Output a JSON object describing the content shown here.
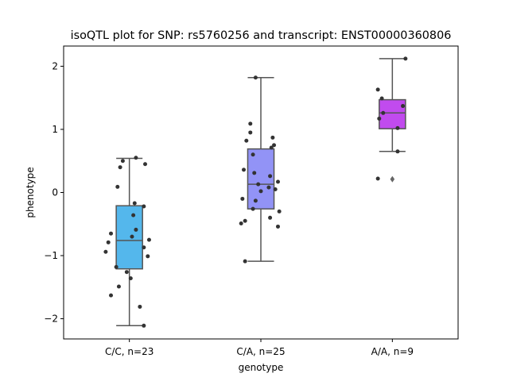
{
  "chart_data": {
    "type": "box",
    "title": "isoQTL plot for SNP: rs5760256 and transcript: ENST00000360806",
    "xlabel": "genotype",
    "ylabel": "phenotype",
    "ylim": [
      -2.32,
      2.32
    ],
    "yticks": [
      -2,
      -1,
      0,
      1,
      2
    ],
    "grid": false,
    "categories": [
      "C/C, n=23",
      "C/A, n=25",
      "A/A, n=9"
    ],
    "colors": [
      "#54b7ec",
      "#9293f6",
      "#c14bee"
    ],
    "point_color": "#333333",
    "box_edge_color": "#555555",
    "boxes": [
      {
        "category": "C/C, n=23",
        "whisker_low": -2.11,
        "q1": -1.21,
        "median": -0.76,
        "q3": -0.21,
        "whisker_high": 0.54,
        "outliers": []
      },
      {
        "category": "C/A, n=25",
        "whisker_low": -1.09,
        "q1": -0.26,
        "median": 0.13,
        "q3": 0.69,
        "whisker_high": 1.82,
        "outliers": []
      },
      {
        "category": "A/A, n=9",
        "whisker_low": 0.65,
        "q1": 1.01,
        "median": 1.26,
        "q3": 1.47,
        "whisker_high": 2.12,
        "outliers": [
          0.21
        ]
      }
    ],
    "points": [
      {
        "category": "C/C, n=23",
        "values": [
          0.55,
          0.5,
          0.45,
          0.4,
          0.09,
          -0.17,
          -0.22,
          -0.36,
          -0.59,
          -0.65,
          -0.7,
          -0.75,
          -0.87,
          -0.94,
          -1.01,
          -1.18,
          -1.26,
          -1.36,
          -1.49,
          -1.63,
          -1.81,
          -2.11,
          -0.79
        ],
        "jitter": [
          0.05,
          -0.05,
          0.12,
          -0.07,
          -0.09,
          0.04,
          0.11,
          0.03,
          0.05,
          -0.14,
          0.02,
          0.15,
          0.11,
          -0.18,
          0.14,
          -0.1,
          -0.02,
          0.01,
          -0.08,
          -0.14,
          0.08,
          0.11,
          -0.16
        ]
      },
      {
        "category": "C/A, n=25",
        "values": [
          1.82,
          1.09,
          0.95,
          0.87,
          0.82,
          0.75,
          0.71,
          0.6,
          0.36,
          0.31,
          0.26,
          0.17,
          0.13,
          0.08,
          0.05,
          -0.1,
          -0.13,
          -0.26,
          -0.3,
          -0.4,
          -0.45,
          -0.49,
          -0.54,
          -1.09,
          0.02
        ],
        "jitter": [
          -0.04,
          -0.08,
          -0.08,
          0.09,
          -0.11,
          0.1,
          0.08,
          -0.06,
          -0.13,
          -0.05,
          0.07,
          0.13,
          -0.02,
          0.06,
          0.11,
          -0.14,
          -0.04,
          -0.06,
          0.14,
          0.07,
          -0.12,
          -0.15,
          0.13,
          -0.12,
          0.0
        ]
      },
      {
        "category": "A/A, n=9",
        "values": [
          2.12,
          1.63,
          1.49,
          1.37,
          1.26,
          1.17,
          1.02,
          0.65,
          0.22
        ],
        "jitter": [
          0.1,
          -0.11,
          -0.08,
          0.08,
          -0.07,
          -0.1,
          0.04,
          0.04,
          -0.11
        ]
      }
    ]
  }
}
